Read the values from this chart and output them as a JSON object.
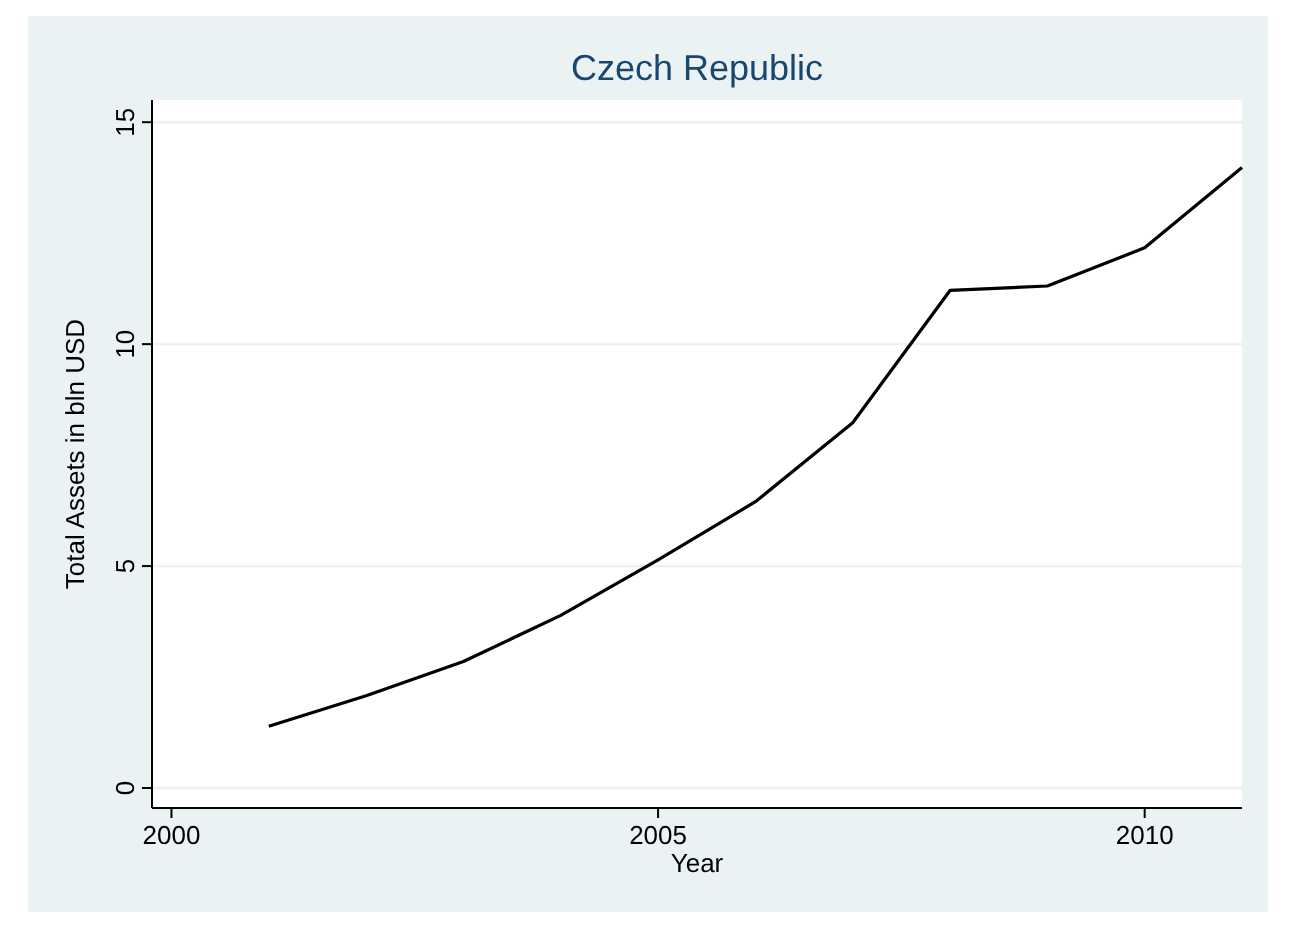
{
  "chart_data": {
    "type": "line",
    "title": "Czech Republic",
    "xlabel": "Year",
    "ylabel": "Total Assets in bln USD",
    "x": [
      2001,
      2002,
      2003,
      2004,
      2005,
      2006,
      2007,
      2008,
      2009,
      2010,
      2011
    ],
    "series": [
      {
        "color": "#000000",
        "values": [
          1.39,
          2.08,
          2.85,
          3.89,
          5.14,
          6.45,
          8.23,
          11.21,
          11.31,
          12.17,
          13.98
        ]
      }
    ],
    "xlim": [
      1999.8,
      2011
    ],
    "xticks": [
      2000,
      2005,
      2010
    ],
    "ylim": [
      -0.45,
      15.5
    ],
    "yticks": [
      0,
      5,
      10,
      15
    ],
    "grid": "y",
    "marker": "none",
    "line_style": "solid"
  }
}
